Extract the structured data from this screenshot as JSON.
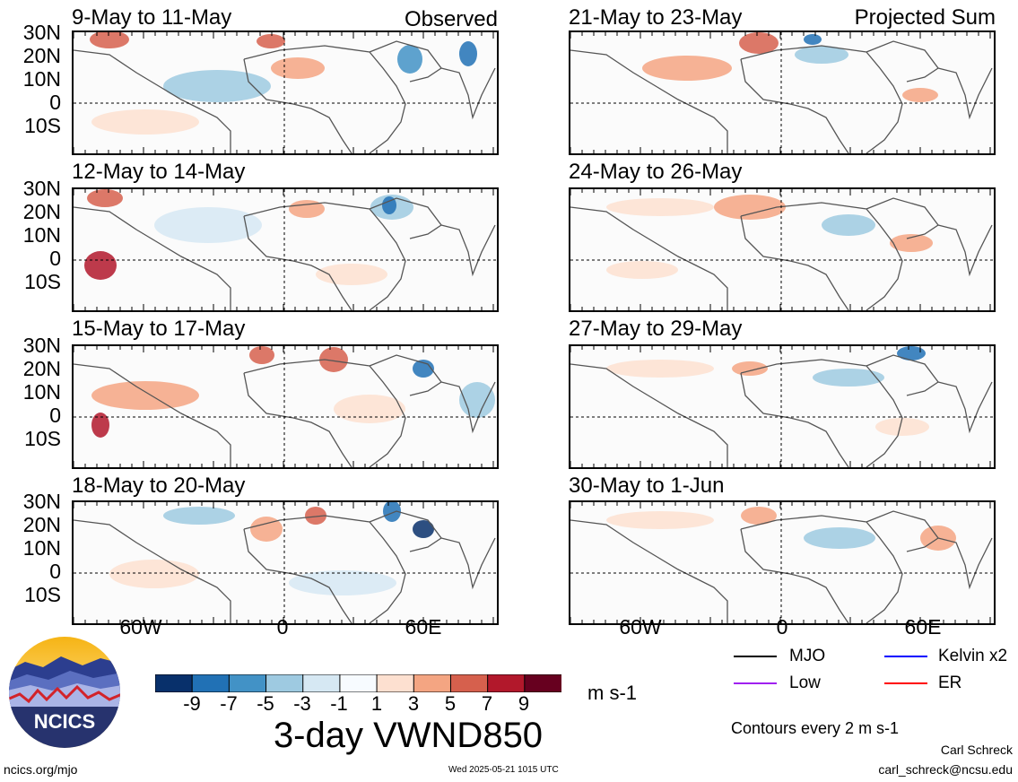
{
  "panels_left": [
    {
      "title": "9-May to 11-May",
      "corner": "Observed"
    },
    {
      "title": "12-May to 14-May",
      "corner": ""
    },
    {
      "title": "15-May to 17-May",
      "corner": ""
    },
    {
      "title": "18-May to 20-May",
      "corner": ""
    }
  ],
  "panels_right": [
    {
      "title": "21-May to 23-May",
      "corner": "Projected Sum"
    },
    {
      "title": "24-May to 26-May",
      "corner": ""
    },
    {
      "title": "27-May to 29-May",
      "corner": ""
    },
    {
      "title": "30-May to 1-Jun",
      "corner": ""
    }
  ],
  "lat_labels": [
    "30N",
    "20N",
    "10N",
    "0",
    "10S"
  ],
  "lon_labels": [
    "60W",
    "0",
    "60E"
  ],
  "colorbar": {
    "ticks": [
      "-9",
      "-7",
      "-5",
      "-3",
      "-1",
      "1",
      "3",
      "5",
      "7",
      "9"
    ],
    "units": "m s-1",
    "colors": [
      "#08306b",
      "#2171b5",
      "#4292c6",
      "#9ecae1",
      "#d6e8f3",
      "#f7fbff",
      "#fde0d0",
      "#f4a582",
      "#d6604d",
      "#b2182b",
      "#67001f"
    ]
  },
  "main_title": "3-day VWND850",
  "legend": {
    "items": [
      {
        "label": "MJO",
        "color": "#000000"
      },
      {
        "label": "Kelvin x2",
        "color": "#0000ff"
      },
      {
        "label": "Low",
        "color": "#a020f0"
      },
      {
        "label": "ER",
        "color": "#ff0000"
      }
    ],
    "contours_note": "Contours every 2 m s-1"
  },
  "logo": {
    "text": "NCICS"
  },
  "footer": {
    "left_link": "ncics.org/mjo",
    "timestamp": "Wed 2025-05-21 1015 UTC",
    "author": "Carl Schreck",
    "email": "carl_schreck@ncsu.edu"
  }
}
